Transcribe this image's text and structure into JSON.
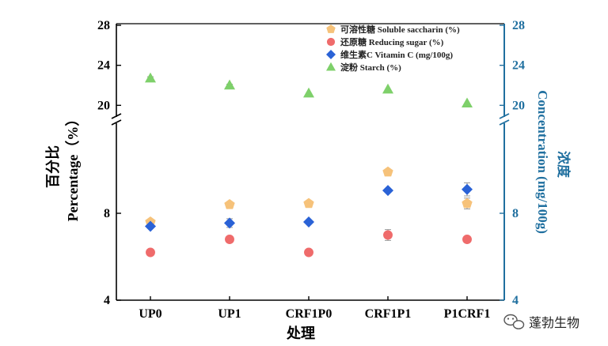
{
  "chart_data": {
    "type": "scatter",
    "categories": [
      "UP0",
      "UP1",
      "CRF1P0",
      "CRF1P1",
      "P1CRF1"
    ],
    "xlabel": "处理",
    "ylabel_cn": "百分比",
    "ylabel": "Percentage（%）",
    "y2label_cn": "浓度",
    "y2label": "Concentration (mg/100g)",
    "axis_break": {
      "lower_range": [
        4,
        12
      ],
      "upper_range": [
        19,
        28
      ]
    },
    "left_ticks": [
      "4",
      "8",
      "20",
      "24",
      "28"
    ],
    "right_ticks": [
      "4",
      "8",
      "20",
      "24",
      "28"
    ],
    "legend_position": "top-right",
    "series": [
      {
        "name": "可溶性糖 Soluble saccharin (%)",
        "marker": "pentagon",
        "color": "#f6c27a",
        "values": [
          7.6,
          8.4,
          8.45,
          9.9,
          8.45
        ],
        "errors": [
          0.1,
          0.1,
          0.1,
          0.1,
          0.25
        ]
      },
      {
        "name": "还原糖 Reducing sugar (%)",
        "marker": "circle",
        "color": "#ef6b6b",
        "values": [
          6.2,
          6.8,
          6.2,
          7.0,
          6.8
        ],
        "errors": [
          0,
          0,
          0,
          0.25,
          0
        ]
      },
      {
        "name": "维生素C Vitamin C (mg/100g)",
        "marker": "diamond",
        "color": "#2a62d6",
        "values": [
          7.4,
          7.55,
          7.6,
          9.05,
          9.1
        ],
        "errors": [
          0,
          0.2,
          0,
          0,
          0.3
        ]
      },
      {
        "name": "淀粉 Starch (%)",
        "marker": "triangle",
        "color": "#7ed06a",
        "values": [
          22.7,
          22.0,
          21.2,
          21.6,
          20.2
        ],
        "errors": [
          0.15,
          0.1,
          0,
          0,
          0
        ]
      }
    ]
  },
  "watermark": {
    "icon": "wechat-icon",
    "text": "蓬勃生物"
  }
}
